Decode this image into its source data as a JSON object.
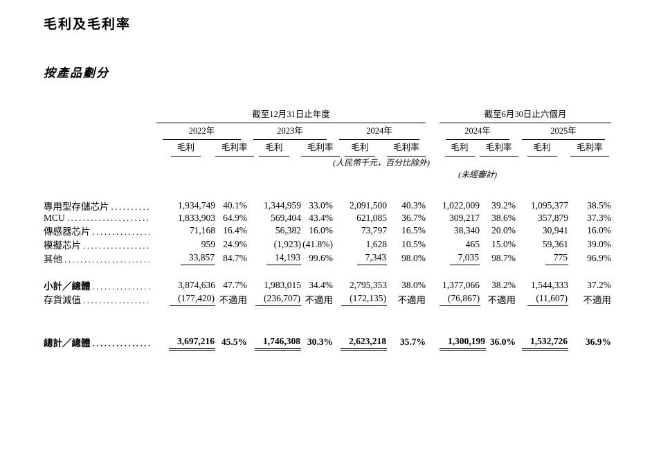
{
  "page": {
    "title": "毛利及毛利率",
    "subtitle": "按產品劃分"
  },
  "table": {
    "groups": [
      {
        "label": "截至12月31日止年度"
      },
      {
        "label": "截至6月30日止六個月"
      }
    ],
    "years": [
      "2022年",
      "2023年",
      "2024年",
      "2024年",
      "2025年"
    ],
    "col_profit": "毛利",
    "col_margin": "毛利率",
    "note_units": "(人民幣千元，百分比除外)",
    "note_unaudited": "(未經審計)",
    "rows": [
      {
        "label": "專用型存儲芯片",
        "values": [
          "1,934,749",
          "40.1%",
          "1,344,959",
          "33.0%",
          "2,091,500",
          "40.3%",
          "1,022,009",
          "39.2%",
          "1,095,377",
          "38.5%"
        ]
      },
      {
        "label": "MCU",
        "values": [
          "1,833,903",
          "64.9%",
          "569,404",
          "43.4%",
          "621,085",
          "36.7%",
          "309,217",
          "38.6%",
          "357,879",
          "37.3%"
        ]
      },
      {
        "label": "傳感器芯片",
        "values": [
          "71,168",
          "16.4%",
          "56,382",
          "16.0%",
          "73,797",
          "16.5%",
          "38,340",
          "20.0%",
          "30,941",
          "16.0%"
        ]
      },
      {
        "label": "模擬芯片",
        "values": [
          "959",
          "24.9%",
          "(1,923)",
          "(41.8%)",
          "1,628",
          "10.5%",
          "465",
          "15.0%",
          "59,361",
          "39.0%"
        ]
      },
      {
        "label": "其他",
        "values": [
          "33,857",
          "84.7%",
          "14,193",
          "99.6%",
          "7,343",
          "98.0%",
          "7,035",
          "98.7%",
          "775",
          "96.9%"
        ]
      },
      {
        "label": "小計／總體",
        "values": [
          "3,874,636",
          "47.7%",
          "1,983,015",
          "34.4%",
          "2,795,353",
          "38.0%",
          "1,377,066",
          "38.2%",
          "1,544,333",
          "37.2%"
        ]
      },
      {
        "label": "存貨減值",
        "values": [
          "(177,420)",
          "不適用",
          "(236,707)",
          "不適用",
          "(172,135)",
          "不適用",
          "(76,867)",
          "不適用",
          "(11,607)",
          "不適用"
        ]
      },
      {
        "label": "總計／總體",
        "values": [
          "3,697,216",
          "45.5%",
          "1,746,308",
          "30.3%",
          "2,623,218",
          "35.7%",
          "1,300,199",
          "36.0%",
          "1,532,726",
          "36.9%"
        ]
      }
    ]
  }
}
